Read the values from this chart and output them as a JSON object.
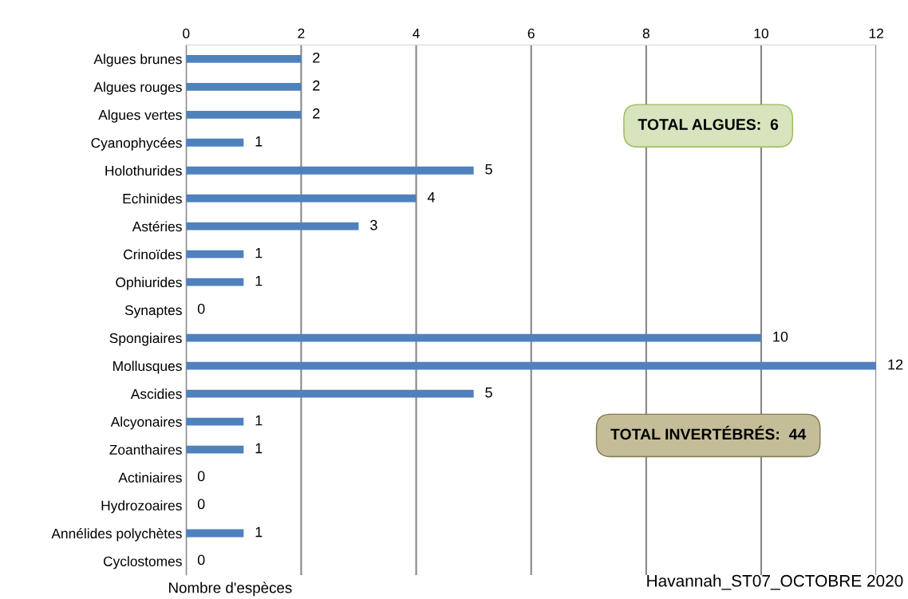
{
  "chart_data": {
    "type": "bar",
    "orientation": "horizontal",
    "categories": [
      "Algues brunes",
      "Algues rouges",
      "Algues vertes",
      "Cyanophycées",
      "Holothurides",
      "Echinides",
      "Astéries",
      "Crinoïdes",
      "Ophiurides",
      "Synaptes",
      "Spongiaires",
      "Mollusques",
      "Ascidies",
      "Alcyonaires",
      "Zoanthaires",
      "Actiniaires",
      "Hydrozoaires",
      "Annélides polychètes",
      "Cyclostomes"
    ],
    "values": [
      2,
      2,
      2,
      1,
      5,
      4,
      3,
      1,
      1,
      0,
      10,
      12,
      5,
      1,
      1,
      0,
      0,
      1,
      0
    ],
    "color": "#4f81bd",
    "xlim": [
      0,
      12
    ],
    "xticks": [
      0,
      2,
      4,
      6,
      8,
      10,
      12
    ],
    "grid": "x",
    "data_labels": true,
    "xlabel": "Nombre d'espèces",
    "annotations": [
      "TOTAL ALGUES:  6",
      "TOTAL INVERTÉBRÉS:  44",
      "Havannah_ST07_OCTOBRE 2020"
    ]
  }
}
